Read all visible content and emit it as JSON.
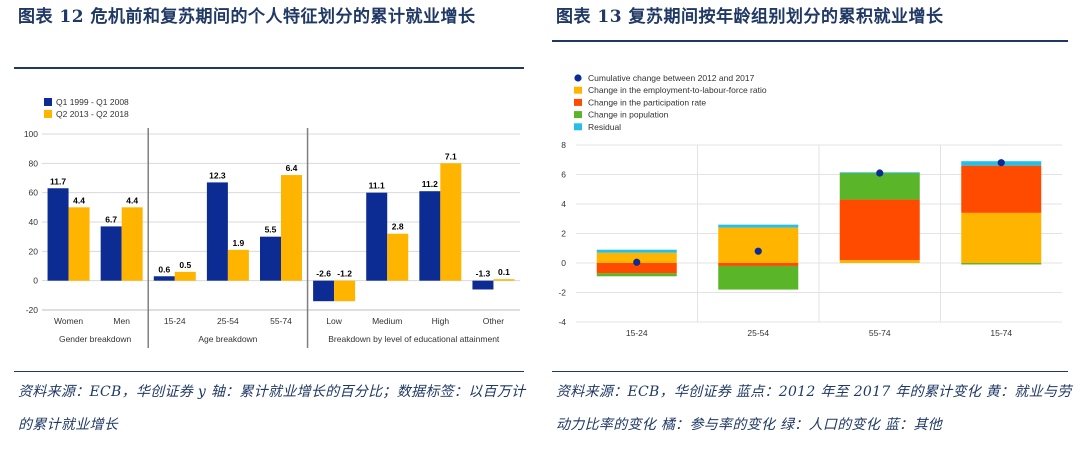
{
  "left": {
    "title": "图表 12 危机前和复苏期间的个人特征划分的累计就业增长",
    "source": "资料来源：ECB，华创证券 y 轴：累计就业增长的百分比；数据标签：以百万计的累计就业增长"
  },
  "right": {
    "title": "图表 13 复苏期间按年龄组别划分的累积就业增长",
    "source": "资料来源：ECB，华创证券 蓝点：2012 年至 2017 年的累计变化 黄：就业与劳动力比率的变化 橘：参与率的变化 绿：人口的变化 蓝：其他"
  },
  "colors": {
    "navy": "#0c2c94",
    "yellow": "#ffb400",
    "orange": "#ff4b00",
    "green": "#5ab528",
    "cyan": "#25bfe8",
    "dot": "#0c2c94",
    "title": "#1f3864"
  },
  "chart_data": [
    {
      "type": "bar",
      "categories": [
        "Women",
        "Men",
        "15-24",
        "25-54",
        "55-74",
        "Low",
        "Medium",
        "High",
        "Other"
      ],
      "groups": [
        {
          "label": "Gender breakdown",
          "categories": [
            "Women",
            "Men"
          ]
        },
        {
          "label": "Age breakdown",
          "categories": [
            "15-24",
            "25-54",
            "55-74"
          ]
        },
        {
          "label": "Breakdown by level of educational attainment",
          "categories": [
            "Low",
            "Medium",
            "High",
            "Other"
          ]
        }
      ],
      "series": [
        {
          "name": "Q1 1999 - Q1 2008",
          "color": "#0c2c94",
          "values": [
            63,
            37,
            3,
            67,
            30,
            -14,
            60,
            61,
            -6
          ],
          "labels": [
            "11.7",
            "6.7",
            "0.6",
            "12.3",
            "5.5",
            "-2.6",
            "11.1",
            "11.2",
            "-1.3"
          ]
        },
        {
          "name": "Q2 2013 - Q2 2018",
          "color": "#ffb400",
          "values": [
            50,
            50,
            6,
            21,
            72,
            -14,
            32,
            80,
            1
          ],
          "labels": [
            "4.4",
            "4.4",
            "0.5",
            "1.9",
            "6.4",
            "-1.2",
            "2.8",
            "7.1",
            "0.1"
          ]
        }
      ],
      "yticks": [
        -20,
        0,
        20,
        40,
        60,
        80,
        100
      ],
      "ylim": [
        -20,
        100
      ],
      "legend": "top-left",
      "grid": true
    },
    {
      "type": "bar",
      "stacked": true,
      "categories": [
        "15-24",
        "25-54",
        "55-74",
        "15-74"
      ],
      "series": [
        {
          "name": "Change in the employment-to-labour-force ratio",
          "color": "#ffb400",
          "values": [
            0.7,
            2.4,
            0.2,
            3.4
          ]
        },
        {
          "name": "Change in the participation rate",
          "color": "#ff4b00",
          "values": [
            -0.7,
            -0.2,
            4.1,
            3.2
          ]
        },
        {
          "name": "Change in population",
          "color": "#5ab528",
          "values": [
            -0.2,
            -1.6,
            1.8,
            -0.1
          ]
        },
        {
          "name": "Residual",
          "color": "#25bfe8",
          "values": [
            0.2,
            0.2,
            0.05,
            0.3
          ]
        }
      ],
      "totals": {
        "name": "Cumulative change between 2012 and 2017",
        "color": "#0c2c94",
        "values": [
          0.05,
          0.8,
          6.1,
          6.8
        ]
      },
      "legend_order": [
        "Cumulative change between 2012 and 2017",
        "Change in the employment-to-labour-force ratio",
        "Change in the participation rate",
        "Change in population",
        "Residual"
      ],
      "yticks": [
        -4,
        -2,
        0,
        2,
        4,
        6,
        8
      ],
      "ylim": [
        -4,
        8
      ],
      "legend": "top-left",
      "grid": true
    }
  ]
}
